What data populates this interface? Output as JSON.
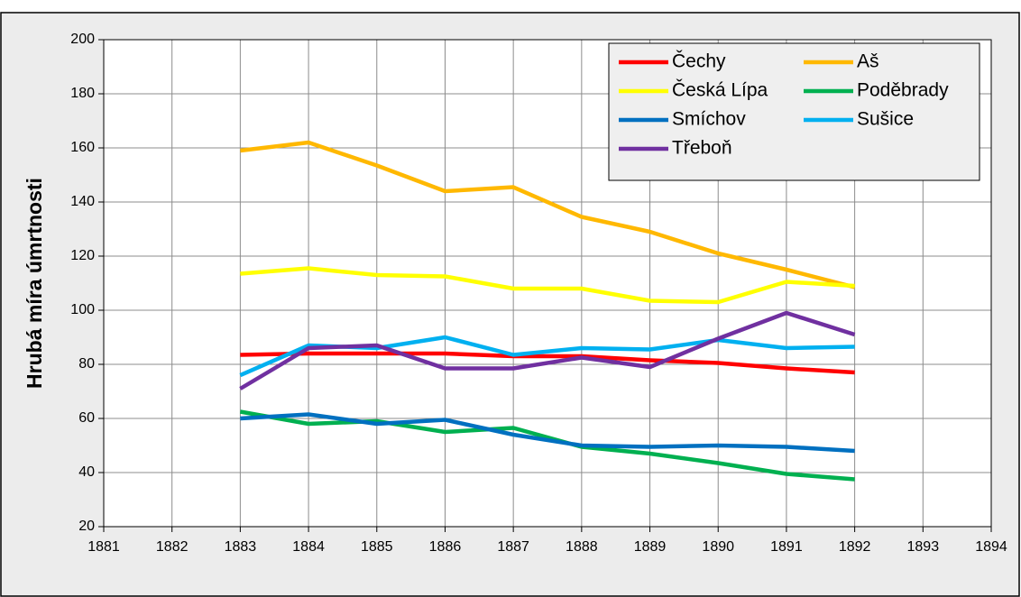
{
  "chart_data": {
    "type": "line",
    "y_label": "Hrubá míra úmrtnosti",
    "x": [
      1883,
      1884,
      1885,
      1886,
      1887,
      1888,
      1889,
      1890,
      1891,
      1892
    ],
    "xlim": [
      1881,
      1894
    ],
    "xticks": [
      1881,
      1882,
      1883,
      1884,
      1885,
      1886,
      1887,
      1888,
      1889,
      1890,
      1891,
      1892,
      1893,
      1894
    ],
    "ylim": [
      20,
      200
    ],
    "yticks": [
      20,
      40,
      60,
      80,
      100,
      120,
      140,
      160,
      180,
      200
    ],
    "grid": true,
    "legend": "upper right",
    "series": [
      {
        "name": "Čechy",
        "color": "#ff0000",
        "values": [
          83.5,
          84,
          84,
          84,
          83,
          83,
          81.5,
          80.5,
          78.5,
          77
        ]
      },
      {
        "name": "Aš",
        "color": "#ffb800",
        "values": [
          159,
          162,
          153.5,
          144,
          145.5,
          134.5,
          129,
          121,
          115,
          108.5
        ]
      },
      {
        "name": "Česká Lípa",
        "color": "#ffff00",
        "values": [
          113.5,
          115.5,
          113,
          112.5,
          108,
          108,
          103.5,
          103,
          110.5,
          109
        ]
      },
      {
        "name": "Poděbrady",
        "color": "#00b050",
        "values": [
          62.5,
          58,
          59,
          55,
          56.5,
          49.5,
          47,
          43.5,
          39.5,
          37.5
        ]
      },
      {
        "name": "Smíchov",
        "color": "#0070c0",
        "values": [
          60,
          61.5,
          58,
          59.5,
          54,
          50,
          49.5,
          50,
          49.5,
          48
        ]
      },
      {
        "name": "Sušice",
        "color": "#00b0f0",
        "values": [
          76,
          87,
          86,
          90,
          83.5,
          86,
          85.5,
          89,
          86,
          86.5
        ]
      },
      {
        "name": "Třeboň",
        "color": "#7030a0",
        "values": [
          71,
          86,
          87,
          78.5,
          78.5,
          82.5,
          79,
          89.5,
          99,
          91
        ]
      }
    ]
  }
}
